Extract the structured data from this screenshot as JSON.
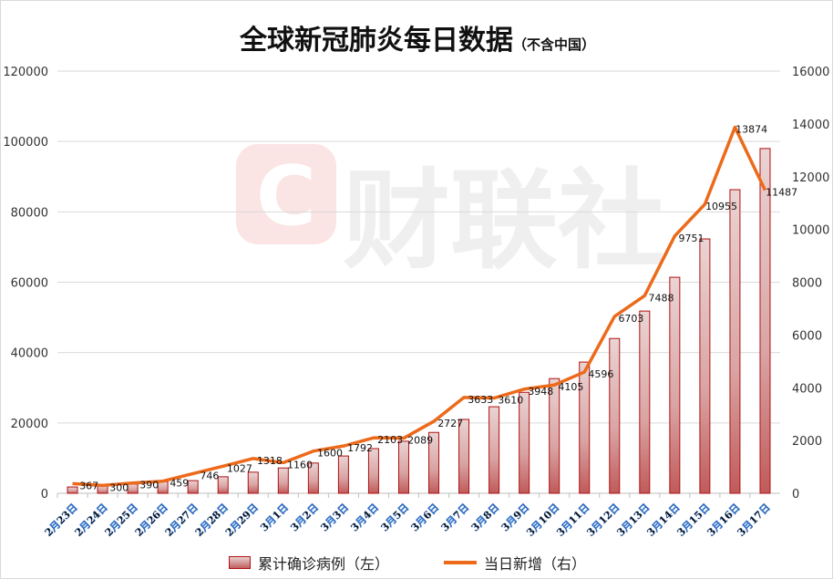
{
  "chart_data": {
    "type": "bar+line",
    "title": "全球新冠肺炎每日数据",
    "subtitle": "（不含中国）",
    "watermark": "财联社",
    "categories": [
      "2月23日",
      "2月24日",
      "2月25日",
      "2月26日",
      "2月27日",
      "2月28日",
      "2月29日",
      "3月1日",
      "3月2日",
      "3月3日",
      "3月4日",
      "3月5日",
      "3月6日",
      "3月7日",
      "3月8日",
      "3月9日",
      "3月10日",
      "3月11日",
      "3月12日",
      "3月13日",
      "3月14日",
      "3月15日",
      "3月16日",
      "3月17日"
    ],
    "series": [
      {
        "name": "累计确诊病例（左）",
        "type": "bar",
        "axis": "left",
        "color": "#c06060",
        "values": [
          1800,
          2300,
          2600,
          3300,
          3600,
          4700,
          6000,
          7200,
          8600,
          10600,
          12700,
          14800,
          17300,
          21000,
          24600,
          28700,
          32600,
          37300,
          44000,
          51800,
          61400,
          72300,
          86300,
          98000
        ]
      },
      {
        "name": "当日新增（右）",
        "type": "line",
        "axis": "right",
        "color": "#ec6a1a",
        "values": [
          367,
          300,
          390,
          459,
          746,
          1027,
          1318,
          1160,
          1600,
          1792,
          2103,
          2089,
          2727,
          3633,
          3610,
          3948,
          4105,
          4596,
          6703,
          7488,
          9751,
          10955,
          13874,
          11487
        ]
      }
    ],
    "left_axis": {
      "ylim": [
        0,
        120000
      ],
      "ticks": [
        "0",
        "20000",
        "40000",
        "60000",
        "80000",
        "100000",
        "120000"
      ]
    },
    "right_axis": {
      "ylim": [
        0,
        16000
      ],
      "ticks": [
        "0",
        "2000",
        "4000",
        "6000",
        "8000",
        "10000",
        "12000",
        "14000",
        "16000"
      ]
    },
    "grid": true,
    "legend_position": "bottom"
  }
}
